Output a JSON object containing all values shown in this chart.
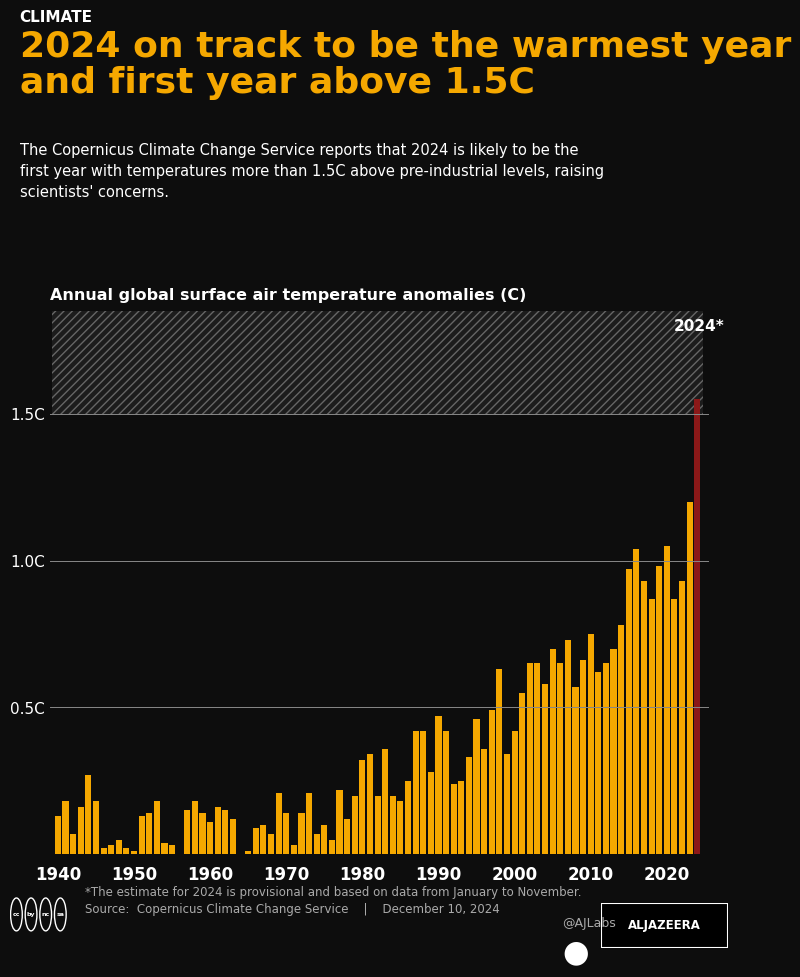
{
  "title_label": "CLIMATE",
  "title": "2024 on track to be the warmest year\nand first year above 1.5C",
  "subtitle": "The Copernicus Climate Change Service reports that 2024 is likely to be the\nfirst year with temperatures more than 1.5C above pre-industrial levels, raising\nscientists' concerns.",
  "chart_title": "Annual global surface air temperature anomalies (C)",
  "footnote": "*The estimate for 2024 is provisional and based on data from January to November.",
  "source": "Source:  Copernicus Climate Change Service    |    December 10, 2024",
  "credit": "@AJLabs",
  "background_color": "#0d0d0d",
  "bar_color": "#F5A800",
  "bar_2024_color": "#8B1818",
  "title_color": "#F5A800",
  "text_color": "#ffffff",
  "label_color": "#aaaaaa",
  "years": [
    1940,
    1941,
    1942,
    1943,
    1944,
    1945,
    1946,
    1947,
    1948,
    1949,
    1950,
    1951,
    1952,
    1953,
    1954,
    1955,
    1956,
    1957,
    1958,
    1959,
    1960,
    1961,
    1962,
    1963,
    1964,
    1965,
    1966,
    1967,
    1968,
    1969,
    1970,
    1971,
    1972,
    1973,
    1974,
    1975,
    1976,
    1977,
    1978,
    1979,
    1980,
    1981,
    1982,
    1983,
    1984,
    1985,
    1986,
    1987,
    1988,
    1989,
    1990,
    1991,
    1992,
    1993,
    1994,
    1995,
    1996,
    1997,
    1998,
    1999,
    2000,
    2001,
    2002,
    2003,
    2004,
    2005,
    2006,
    2007,
    2008,
    2009,
    2010,
    2011,
    2012,
    2013,
    2014,
    2015,
    2016,
    2017,
    2018,
    2019,
    2020,
    2021,
    2022,
    2023,
    2024
  ],
  "values": [
    0.13,
    0.18,
    0.07,
    0.16,
    0.27,
    0.18,
    0.02,
    0.03,
    0.05,
    0.02,
    0.01,
    0.13,
    0.14,
    0.18,
    0.04,
    0.03,
    -0.01,
    0.15,
    0.18,
    0.14,
    0.11,
    0.16,
    0.15,
    0.12,
    -0.05,
    0.01,
    0.09,
    0.1,
    0.07,
    0.21,
    0.14,
    0.03,
    0.14,
    0.21,
    0.07,
    0.1,
    0.05,
    0.22,
    0.12,
    0.2,
    0.32,
    0.34,
    0.2,
    0.36,
    0.2,
    0.18,
    0.25,
    0.42,
    0.42,
    0.28,
    0.47,
    0.42,
    0.24,
    0.25,
    0.33,
    0.46,
    0.36,
    0.49,
    0.63,
    0.34,
    0.42,
    0.55,
    0.65,
    0.65,
    0.58,
    0.7,
    0.65,
    0.73,
    0.57,
    0.66,
    0.75,
    0.62,
    0.65,
    0.7,
    0.78,
    0.97,
    1.04,
    0.93,
    0.87,
    0.98,
    1.05,
    0.87,
    0.93,
    1.2,
    1.55
  ],
  "threshold": 1.5,
  "ylim": [
    0,
    1.85
  ],
  "yticks": [
    0.5,
    1.0,
    1.5
  ],
  "ytick_labels": [
    "0.5C",
    "1.0C",
    "1.5C"
  ]
}
